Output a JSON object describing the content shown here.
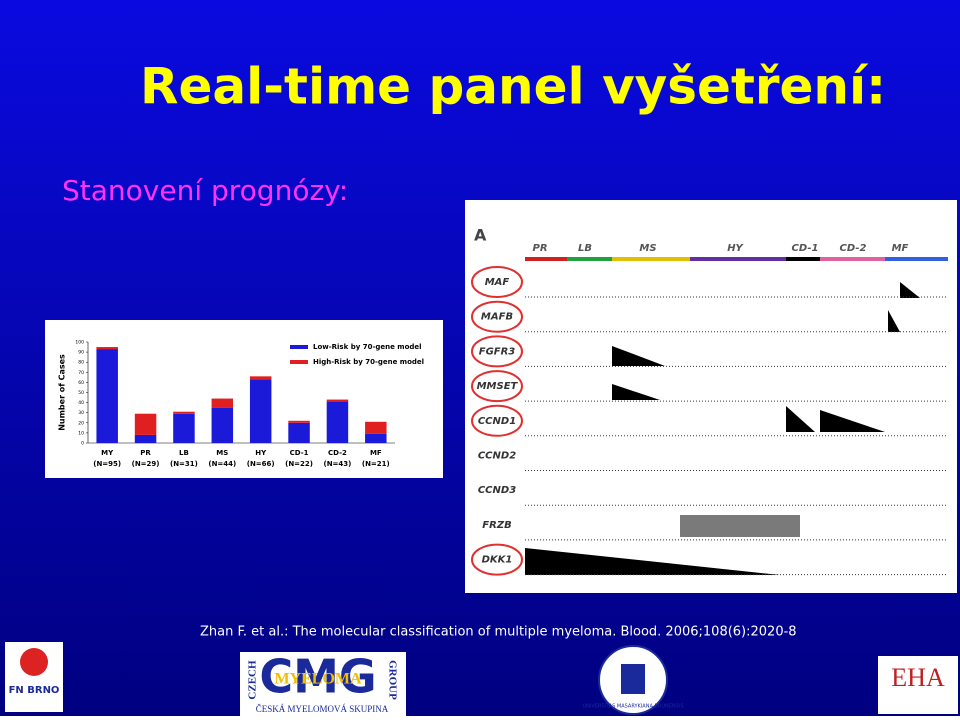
{
  "title": "Real-time panel vyšetření:",
  "subtitle": "Stanovení prognózy:",
  "citation": "Zhan F. et al.: The molecular classification of multiple myeloma. Blood. 2006;108(6):2020-8",
  "chart_data": {
    "type": "bar",
    "stacked": true,
    "y_label": "Number of Cases",
    "categories": [
      "MY",
      "PR",
      "LB",
      "MS",
      "HY",
      "CD-1",
      "CD-2",
      "MF"
    ],
    "category_counts": [
      "(N=95)",
      "(N=29)",
      "(N=31)",
      "(N=44)",
      "(N=66)",
      "(N=22)",
      "(N=43)",
      "(N=21)"
    ],
    "series": [
      {
        "name": "Low-Risk by 70-gene model",
        "color": "#1a1ad8",
        "values": [
          93,
          8,
          29,
          35,
          63,
          20,
          41,
          9
        ]
      },
      {
        "name": "High-Risk by 70-gene model",
        "color": "#e02020",
        "values": [
          2,
          21,
          2,
          9,
          3,
          2,
          2,
          12
        ]
      }
    ],
    "ylim": [
      0,
      100
    ],
    "yticks": [
      0,
      10,
      20,
      30,
      40,
      50,
      60,
      70,
      80,
      90,
      100
    ],
    "grid": false
  },
  "gene_panel": {
    "label": "A",
    "groups": [
      "PR",
      "LB",
      "MS",
      "HY",
      "CD-1",
      "CD-2",
      "MF"
    ],
    "genes": [
      "MAF",
      "MAFB",
      "FGFR3",
      "MMSET",
      "CCND1",
      "CCND2",
      "CCND3",
      "FRZB",
      "DKK1"
    ]
  },
  "logos": {
    "fn": "FN BRNO",
    "cmg": "CMG",
    "cmg_word": "MYELOMA",
    "cmg_left": "CZECH",
    "cmg_right": "GROUP",
    "cmg_bottom": "ČESKÁ MYELOMOVÁ SKUPINA",
    "muni": "UNIVERSITAS MASARYKIANA BRUNENSIS",
    "eha": "EHA"
  }
}
